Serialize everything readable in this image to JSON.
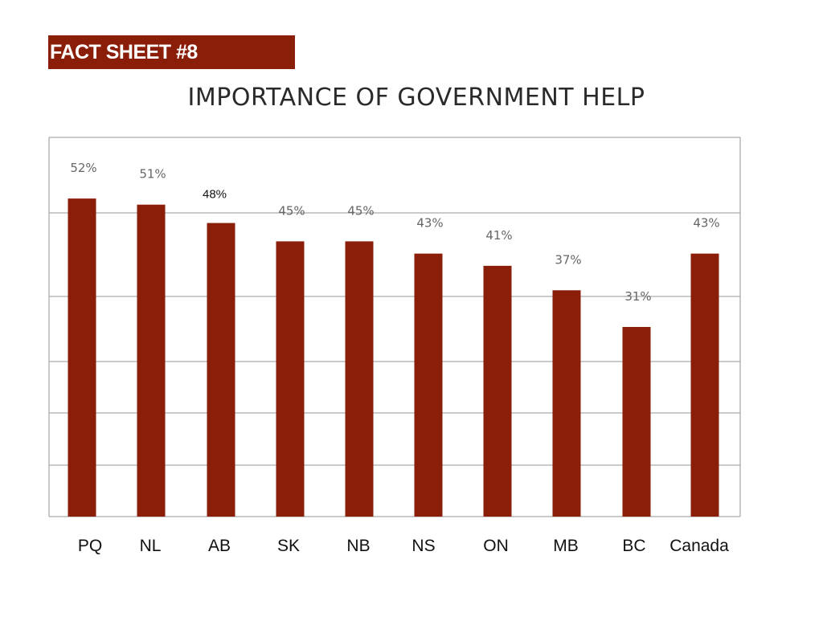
{
  "header": {
    "badge": "FACT SHEET #8"
  },
  "chart_data": {
    "type": "bar",
    "title": "IMPORTANCE OF GOVERNMENT HELP",
    "xlabel": "",
    "ylabel": "",
    "categories": [
      "PQ",
      "NL",
      "AB",
      "SK",
      "NB",
      "NS",
      "ON",
      "MB",
      "BC",
      "Canada"
    ],
    "values": [
      52,
      51,
      48,
      45,
      45,
      43,
      41,
      37,
      31,
      43
    ],
    "value_labels": [
      "52%",
      "51%",
      "48%",
      "45%",
      "45%",
      "43%",
      "41%",
      "37%",
      "31%",
      "43%"
    ],
    "ylim": [
      0,
      62
    ],
    "grid": true,
    "legend": "none",
    "bar_color": "#8a1e08",
    "grid_color": "#aaaaaa"
  }
}
